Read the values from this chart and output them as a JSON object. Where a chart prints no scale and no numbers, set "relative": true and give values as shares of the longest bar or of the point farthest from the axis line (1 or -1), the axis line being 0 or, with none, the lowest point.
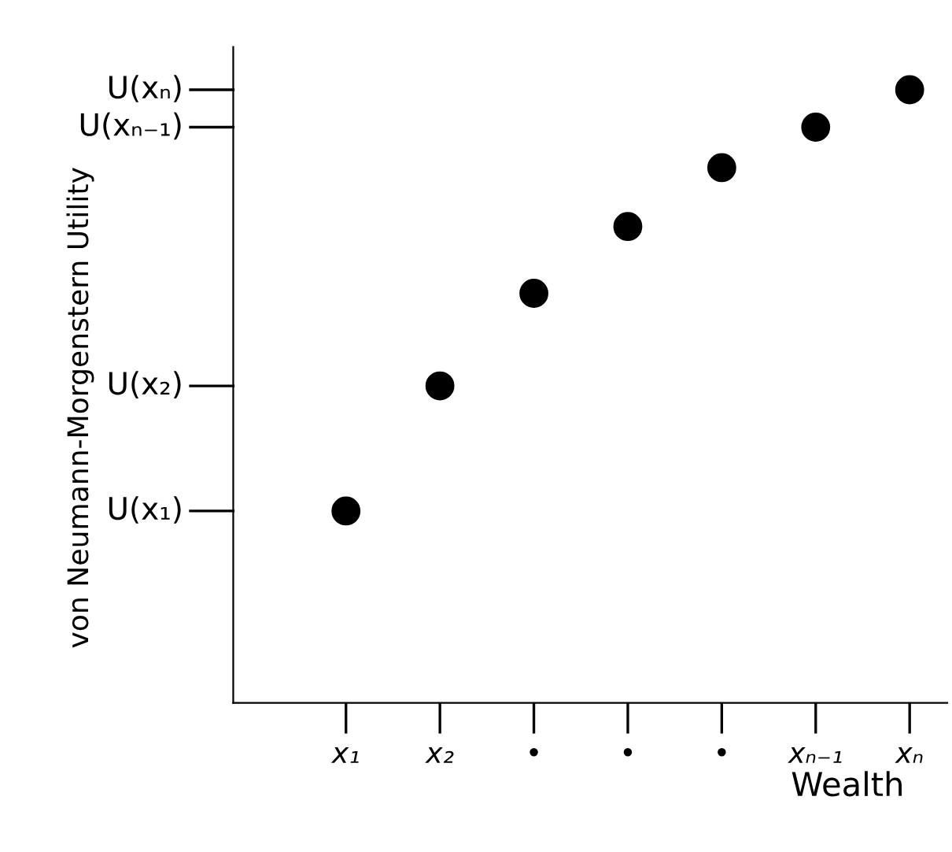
{
  "chart_data": {
    "type": "scatter",
    "relative": true,
    "xlabel": "Wealth",
    "ylabel": "von Neumann-Morgenstern Utility",
    "categories": [
      "x₁",
      "x₂",
      "•",
      "•",
      "•",
      "xₙ₋₁",
      "xₙ"
    ],
    "series": [
      {
        "color": "#000000",
        "values": [
          0.313,
          0.517,
          0.668,
          0.777,
          0.873,
          0.939,
          1.0
        ]
      }
    ],
    "ref_lines": [
      {
        "axis": "y",
        "value": 0.313,
        "label": "U(x₁)"
      },
      {
        "axis": "y",
        "value": 0.517,
        "label": "U(x₂)"
      },
      {
        "axis": "y",
        "value": 0.939,
        "label": "U(xₙ₋₁)"
      },
      {
        "axis": "y",
        "value": 1.0,
        "label": "U(xₙ)"
      }
    ],
    "marker": "circle",
    "grid": false,
    "legend": false
  }
}
